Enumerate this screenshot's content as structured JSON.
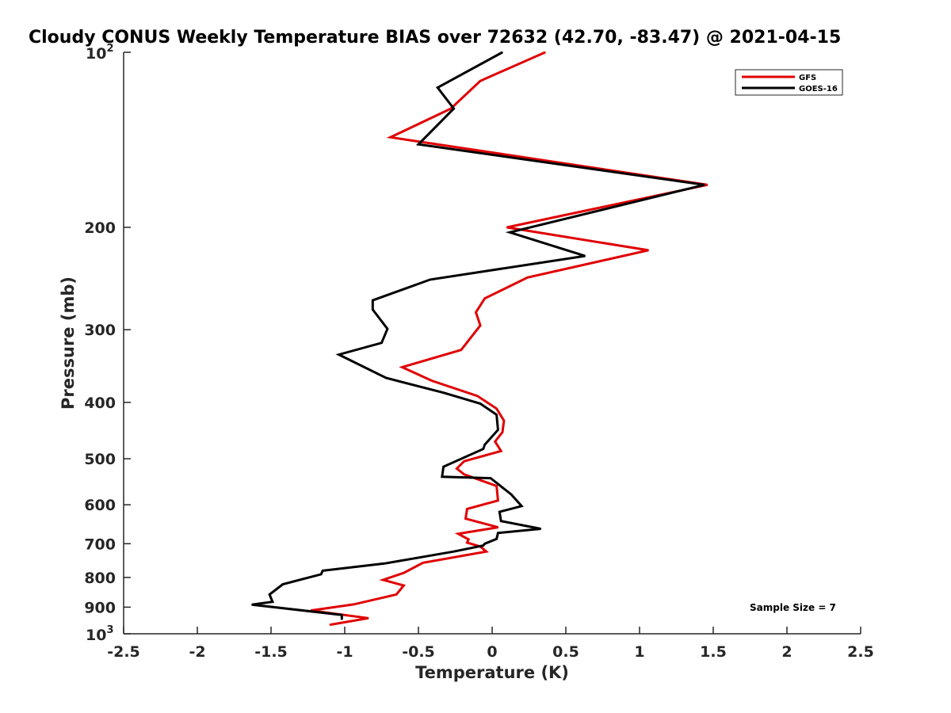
{
  "chart_data": {
    "type": "line",
    "title": "Cloudy CONUS Weekly Temperature BIAS over 72632 (42.70, -83.47) @ 2021-04-15",
    "xlabel": "Temperature (K)",
    "ylabel": "Pressure (mb)",
    "xlim": [
      -2.5,
      2.5
    ],
    "ylim": [
      100,
      1000
    ],
    "yscale": "log",
    "y_reversed": true,
    "x_ticks": [
      "-2.5",
      "-2",
      "-1.5",
      "-1",
      "-0.5",
      "0",
      "0.5",
      "1",
      "1.5",
      "2",
      "2.5"
    ],
    "x_tick_values": [
      -2.5,
      -2,
      -1.5,
      -1,
      -0.5,
      0,
      0.5,
      1,
      1.5,
      2,
      2.5
    ],
    "y_tick_labels": [
      {
        "label": "200",
        "value": 200
      },
      {
        "label": "300",
        "value": 300
      },
      {
        "label": "400",
        "value": 400
      },
      {
        "label": "500",
        "value": 500
      },
      {
        "label": "600",
        "value": 600
      },
      {
        "label": "700",
        "value": 700
      },
      {
        "label": "800",
        "value": 800
      },
      {
        "label": "900",
        "value": 900
      }
    ],
    "y_top_label": {
      "base": "10",
      "exp": "2"
    },
    "y_bottom_label": {
      "base": "10",
      "exp": "3"
    },
    "grid": false,
    "legend_position": "top-right",
    "annotation": "Sample Size = 7",
    "series": [
      {
        "name": "GFS",
        "color": "#e00000",
        "x": [
          0.36,
          -0.08,
          -0.28,
          -0.69,
          1.46,
          0.1,
          1.06,
          0.24,
          -0.05,
          -0.11,
          -0.08,
          -0.21,
          -0.61,
          -0.41,
          -0.1,
          0.03,
          0.08,
          0.07,
          0.02,
          0.06,
          -0.19,
          -0.24,
          -0.19,
          0.03,
          0.04,
          -0.17,
          -0.18,
          0.04,
          -0.23,
          -0.16,
          -0.17,
          -0.08,
          -0.04,
          -0.47,
          -0.6,
          -0.74,
          -0.6,
          -0.65,
          -0.94,
          -1.23,
          -0.84,
          -1.1
        ],
        "y": [
          100,
          112,
          125,
          140,
          169,
          200,
          219,
          244,
          265,
          280,
          295,
          325,
          348,
          367,
          390,
          410,
          430,
          450,
          467,
          485,
          505,
          520,
          532,
          557,
          590,
          610,
          634,
          656,
          673,
          688,
          697,
          708,
          722,
          755,
          786,
          808,
          826,
          856,
          890,
          912,
          940,
          965
        ]
      },
      {
        "name": "GOES-16",
        "color": "#000000",
        "x": [
          0.07,
          -0.37,
          -0.26,
          -0.5,
          1.44,
          0.12,
          0.63,
          -0.42,
          -0.81,
          -0.81,
          -0.71,
          -0.75,
          -1.04,
          -0.72,
          -0.33,
          -0.08,
          0.03,
          0.04,
          -0.05,
          -0.06,
          -0.33,
          -0.34,
          -0.01,
          0.13,
          0.2,
          0.05,
          0.06,
          0.33,
          0.04,
          0.03,
          -0.05,
          -0.06,
          -0.26,
          -0.73,
          -1.15,
          -1.16,
          -1.42,
          -1.51,
          -1.49,
          -1.63,
          -1.02,
          -1.02
        ],
        "y": [
          100,
          115,
          125,
          144,
          169,
          204,
          224,
          246,
          267,
          277,
          299,
          316,
          331,
          363,
          385,
          402,
          420,
          446,
          473,
          481,
          516,
          537,
          540,
          576,
          603,
          617,
          640,
          660,
          671,
          687,
          700,
          705,
          722,
          757,
          779,
          790,
          822,
          856,
          881,
          891,
          928,
          945
        ]
      }
    ]
  }
}
